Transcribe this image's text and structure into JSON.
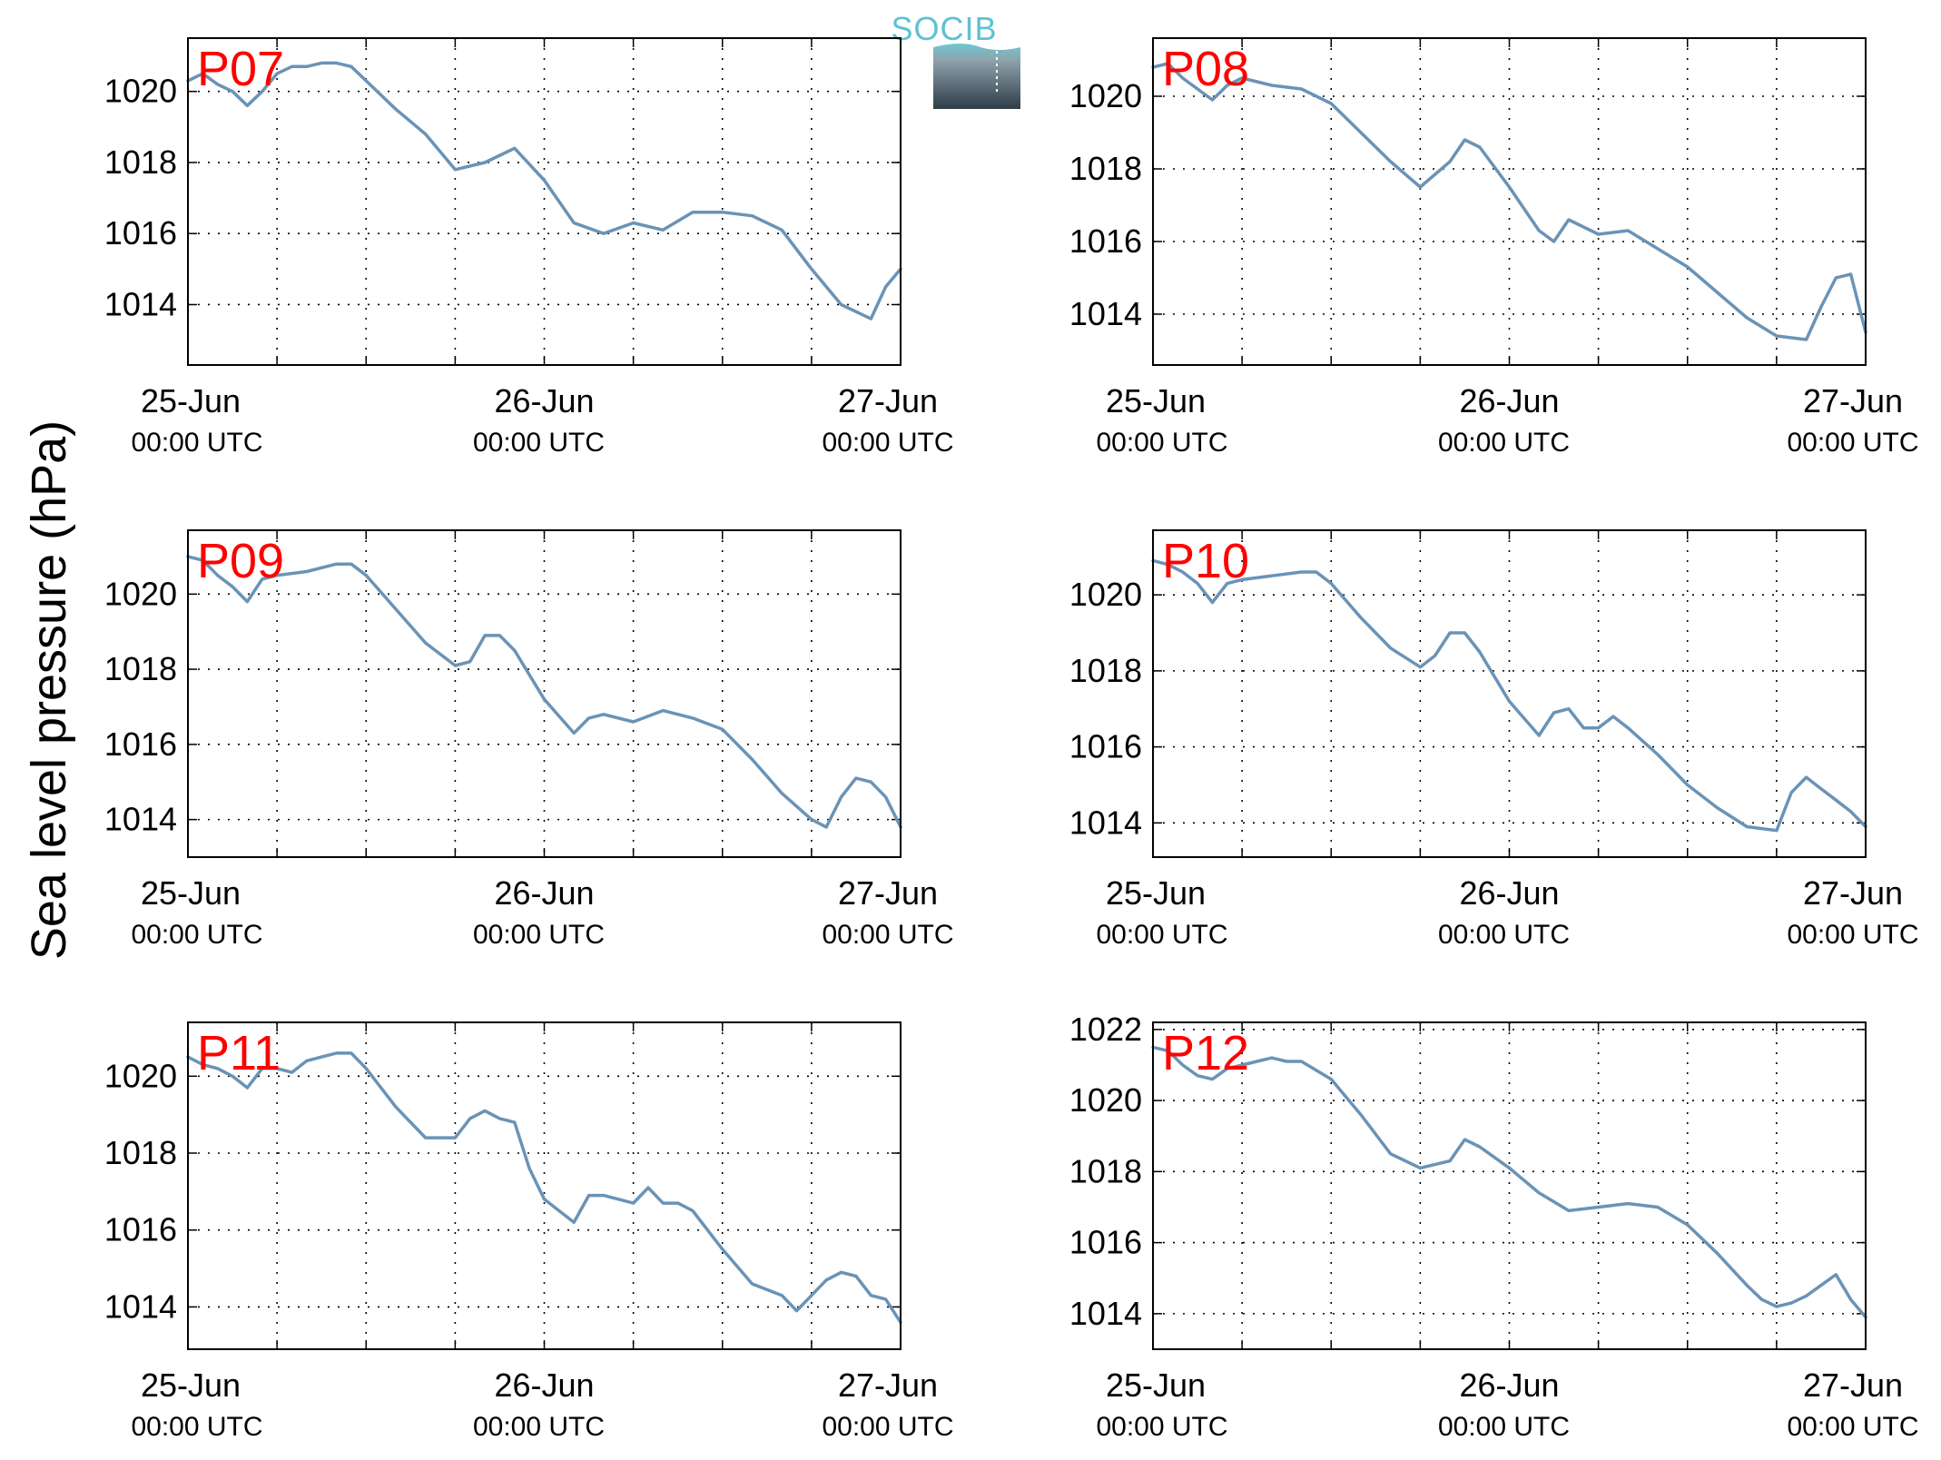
{
  "logo": {
    "text": "SOCIB"
  },
  "ylabel": "Sea level pressure (hPa)",
  "x_ticks": [
    {
      "date": "25-Jun",
      "time": "00:00 UTC"
    },
    {
      "date": "26-Jun",
      "time": "00:00 UTC"
    },
    {
      "date": "27-Jun",
      "time": "00:00 UTC"
    }
  ],
  "colors": {
    "line": "#6a93b6",
    "panel_label": "#ff0000",
    "grid": "#000000"
  },
  "chart_data": [
    {
      "type": "line",
      "panel": "P07",
      "xlim": [
        "2014-06-25 00:00",
        "2014-06-27 00:00"
      ],
      "ylim": [
        1012.3,
        1021.5
      ],
      "yticks": [
        1014,
        1016,
        1018,
        1020
      ],
      "grid": true,
      "series": [
        {
          "x_hours": [
            0,
            1,
            2,
            3,
            4,
            5,
            6,
            7,
            8,
            9,
            10,
            11,
            12,
            14,
            16,
            18,
            20,
            22,
            24,
            26,
            28,
            30,
            32,
            34,
            36,
            38,
            40,
            42,
            44,
            46,
            47,
            48
          ],
          "values": [
            1020.3,
            1020.5,
            1020.2,
            1020.0,
            1019.6,
            1020.0,
            1020.5,
            1020.7,
            1020.7,
            1020.8,
            1020.8,
            1020.7,
            1020.3,
            1019.5,
            1018.8,
            1017.8,
            1018.0,
            1018.4,
            1017.5,
            1016.3,
            1016.0,
            1016.3,
            1016.1,
            1016.6,
            1016.6,
            1016.5,
            1016.1,
            1015.0,
            1014.0,
            1013.6,
            1014.5,
            1015.0
          ]
        }
      ]
    },
    {
      "type": "line",
      "panel": "P08",
      "xlim": [
        "2014-06-25 00:00",
        "2014-06-27 00:00"
      ],
      "ylim": [
        1012.6,
        1021.6
      ],
      "yticks": [
        1014,
        1016,
        1018,
        1020
      ],
      "grid": true,
      "series": [
        {
          "x_hours": [
            0,
            1,
            2,
            3,
            4,
            5,
            6,
            7,
            8,
            10,
            12,
            14,
            16,
            18,
            20,
            21,
            22,
            24,
            26,
            27,
            28,
            30,
            32,
            34,
            36,
            38,
            40,
            42,
            44,
            45,
            46,
            47,
            48
          ],
          "values": [
            1020.8,
            1020.9,
            1020.5,
            1020.2,
            1019.9,
            1020.3,
            1020.5,
            1020.4,
            1020.3,
            1020.2,
            1019.8,
            1019.0,
            1018.2,
            1017.5,
            1018.2,
            1018.8,
            1018.6,
            1017.5,
            1016.3,
            1016.0,
            1016.6,
            1016.2,
            1016.3,
            1015.8,
            1015.3,
            1014.6,
            1013.9,
            1013.4,
            1013.3,
            1014.2,
            1015.0,
            1015.1,
            1013.5
          ]
        }
      ]
    },
    {
      "type": "line",
      "panel": "P09",
      "xlim": [
        "2014-06-25 00:00",
        "2014-06-27 00:00"
      ],
      "ylim": [
        1013.0,
        1021.7
      ],
      "yticks": [
        1014,
        1016,
        1018,
        1020
      ],
      "grid": true,
      "series": [
        {
          "x_hours": [
            0,
            1,
            2,
            3,
            4,
            5,
            6,
            8,
            10,
            11,
            12,
            14,
            16,
            18,
            19,
            20,
            21,
            22,
            24,
            26,
            27,
            28,
            30,
            32,
            34,
            36,
            38,
            40,
            42,
            43,
            44,
            45,
            46,
            47,
            48
          ],
          "values": [
            1021.0,
            1020.9,
            1020.5,
            1020.2,
            1019.8,
            1020.4,
            1020.5,
            1020.6,
            1020.8,
            1020.8,
            1020.5,
            1019.6,
            1018.7,
            1018.1,
            1018.2,
            1018.9,
            1018.9,
            1018.5,
            1017.2,
            1016.3,
            1016.7,
            1016.8,
            1016.6,
            1016.9,
            1016.7,
            1016.4,
            1015.6,
            1014.7,
            1014.0,
            1013.8,
            1014.6,
            1015.1,
            1015.0,
            1014.6,
            1013.8
          ]
        }
      ]
    },
    {
      "type": "line",
      "panel": "P10",
      "xlim": [
        "2014-06-25 00:00",
        "2014-06-27 00:00"
      ],
      "ylim": [
        1013.1,
        1021.7
      ],
      "yticks": [
        1014,
        1016,
        1018,
        1020
      ],
      "grid": true,
      "series": [
        {
          "x_hours": [
            0,
            1,
            2,
            3,
            4,
            5,
            6,
            8,
            10,
            11,
            12,
            14,
            16,
            18,
            19,
            20,
            21,
            22,
            24,
            26,
            27,
            28,
            29,
            30,
            31,
            32,
            34,
            36,
            38,
            40,
            42,
            43,
            44,
            45,
            46,
            47,
            48
          ],
          "values": [
            1020.9,
            1020.8,
            1020.6,
            1020.3,
            1019.8,
            1020.3,
            1020.4,
            1020.5,
            1020.6,
            1020.6,
            1020.3,
            1019.4,
            1018.6,
            1018.1,
            1018.4,
            1019.0,
            1019.0,
            1018.5,
            1017.2,
            1016.3,
            1016.9,
            1017.0,
            1016.5,
            1016.5,
            1016.8,
            1016.5,
            1015.8,
            1015.0,
            1014.4,
            1013.9,
            1013.8,
            1014.8,
            1015.2,
            1014.9,
            1014.6,
            1014.3,
            1013.9
          ]
        }
      ]
    },
    {
      "type": "line",
      "panel": "P11",
      "xlim": [
        "2014-06-25 00:00",
        "2014-06-27 00:00"
      ],
      "ylim": [
        1012.9,
        1021.4
      ],
      "yticks": [
        1014,
        1016,
        1018,
        1020
      ],
      "grid": true,
      "series": [
        {
          "x_hours": [
            0,
            1,
            2,
            3,
            4,
            5,
            6,
            7,
            8,
            9,
            10,
            11,
            12,
            14,
            16,
            18,
            19,
            20,
            21,
            22,
            23,
            24,
            26,
            27,
            28,
            30,
            31,
            32,
            33,
            34,
            36,
            38,
            40,
            41,
            42,
            43,
            44,
            45,
            46,
            47,
            48
          ],
          "values": [
            1020.5,
            1020.3,
            1020.2,
            1020.0,
            1019.7,
            1020.2,
            1020.2,
            1020.1,
            1020.4,
            1020.5,
            1020.6,
            1020.6,
            1020.2,
            1019.2,
            1018.4,
            1018.4,
            1018.9,
            1019.1,
            1018.9,
            1018.8,
            1017.6,
            1016.8,
            1016.2,
            1016.9,
            1016.9,
            1016.7,
            1017.1,
            1016.7,
            1016.7,
            1016.5,
            1015.5,
            1014.6,
            1014.3,
            1013.9,
            1014.3,
            1014.7,
            1014.9,
            1014.8,
            1014.3,
            1014.2,
            1013.6
          ]
        }
      ]
    },
    {
      "type": "line",
      "panel": "P12",
      "xlim": [
        "2014-06-25 00:00",
        "2014-06-27 00:00"
      ],
      "ylim": [
        1013.0,
        1022.2
      ],
      "yticks": [
        1014,
        1016,
        1018,
        1020,
        1022
      ],
      "grid": true,
      "series": [
        {
          "x_hours": [
            0,
            1,
            2,
            3,
            4,
            5,
            6,
            7,
            8,
            9,
            10,
            12,
            14,
            16,
            18,
            20,
            21,
            22,
            24,
            26,
            28,
            30,
            32,
            34,
            36,
            38,
            40,
            41,
            42,
            43,
            44,
            45,
            46,
            47,
            48
          ],
          "values": [
            1021.5,
            1021.4,
            1021.0,
            1020.7,
            1020.6,
            1020.9,
            1021.0,
            1021.1,
            1021.2,
            1021.1,
            1021.1,
            1020.6,
            1019.6,
            1018.5,
            1018.1,
            1018.3,
            1018.9,
            1018.7,
            1018.1,
            1017.4,
            1016.9,
            1017.0,
            1017.1,
            1017.0,
            1016.5,
            1015.7,
            1014.8,
            1014.4,
            1014.2,
            1014.3,
            1014.5,
            1014.8,
            1015.1,
            1014.4,
            1013.9
          ]
        }
      ]
    }
  ]
}
